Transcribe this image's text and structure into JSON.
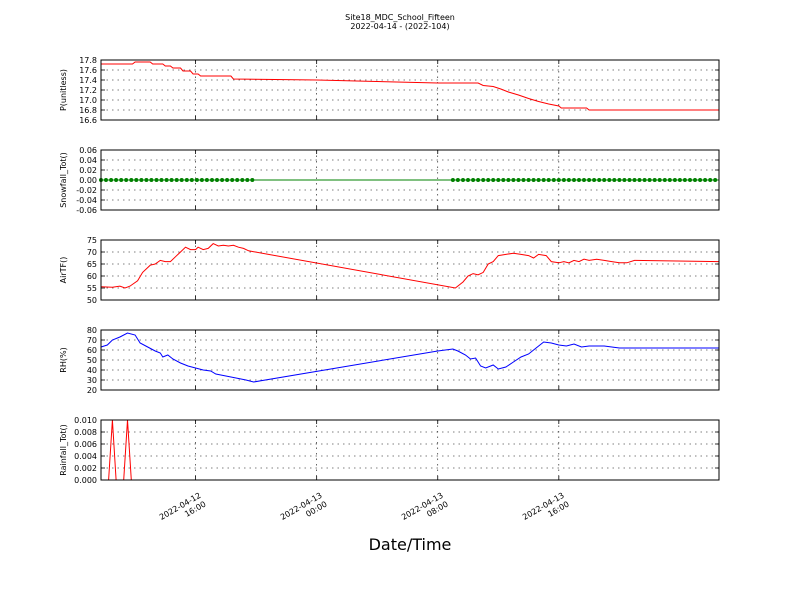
{
  "chart_data": {
    "title": "Site18_MDC_School_Fifteen",
    "subtitle": "2022-04-14 - (2022-104)",
    "xlabel": "Date/Time",
    "xlim": [
      "2022-04-12 09:45",
      "2022-04-14 02:35"
    ],
    "xticks": [
      {
        "label_date": "2022-04-12",
        "label_time": "16:00",
        "time": "2022-04-12 16:00"
      },
      {
        "label_date": "2022-04-13",
        "label_time": "00:00",
        "time": "2022-04-13 00:00"
      },
      {
        "label_date": "2022-04-13",
        "label_time": "08:00",
        "time": "2022-04-13 08:00"
      },
      {
        "label_date": "2022-04-13",
        "label_time": "16:00",
        "time": "2022-04-13 16:00"
      }
    ],
    "grid": true,
    "panels": [
      {
        "type": "line",
        "ylabel": "P(unitless)",
        "color": "#ff0000",
        "marker": "none",
        "ylim": [
          16.6,
          17.8
        ],
        "yticks": [
          "16.6",
          "16.8",
          "17.0",
          "17.2",
          "17.4",
          "17.6",
          "17.8"
        ],
        "points": [
          [
            "2022-04-12 09:45",
            17.72
          ],
          [
            "2022-04-12 11:50",
            17.72
          ],
          [
            "2022-04-12 12:00",
            17.76
          ],
          [
            "2022-04-12 13:00",
            17.76
          ],
          [
            "2022-04-12 13:10",
            17.72
          ],
          [
            "2022-04-12 13:50",
            17.72
          ],
          [
            "2022-04-12 14:00",
            17.68
          ],
          [
            "2022-04-12 14:20",
            17.68
          ],
          [
            "2022-04-12 14:30",
            17.64
          ],
          [
            "2022-04-12 15:00",
            17.64
          ],
          [
            "2022-04-12 15:10",
            17.58
          ],
          [
            "2022-04-12 15:40",
            17.58
          ],
          [
            "2022-04-12 15:50",
            17.52
          ],
          [
            "2022-04-12 16:10",
            17.52
          ],
          [
            "2022-04-12 16:20",
            17.48
          ],
          [
            "2022-04-12 18:20",
            17.48
          ],
          [
            "2022-04-12 18:30",
            17.42
          ],
          [
            "2022-04-13 00:00",
            17.4
          ],
          [
            "2022-04-13 08:00",
            17.34
          ],
          [
            "2022-04-13 10:40",
            17.34
          ],
          [
            "2022-04-13 11:00",
            17.29
          ],
          [
            "2022-04-13 11:40",
            17.27
          ],
          [
            "2022-04-13 12:10",
            17.22
          ],
          [
            "2022-04-13 12:40",
            17.16
          ],
          [
            "2022-04-13 13:20",
            17.1
          ],
          [
            "2022-04-13 14:00",
            17.03
          ],
          [
            "2022-04-13 14:40",
            16.97
          ],
          [
            "2022-04-13 15:20",
            16.92
          ],
          [
            "2022-04-13 16:00",
            16.88
          ],
          [
            "2022-04-13 16:10",
            16.84
          ],
          [
            "2022-04-13 17:50",
            16.84
          ],
          [
            "2022-04-13 18:00",
            16.8
          ],
          [
            "2022-04-14 02:35",
            16.8
          ]
        ]
      },
      {
        "type": "line",
        "ylabel": "Snowfall_Tot()",
        "color": "#008000",
        "marker": "dot",
        "ylim": [
          -0.06,
          0.06
        ],
        "yticks": [
          "-0.06",
          "-0.04",
          "-0.02",
          "0.00",
          "0.02",
          "0.04",
          "0.06"
        ],
        "marker_segments": [
          {
            "start": "2022-04-12 09:45",
            "end": "2022-04-12 19:50",
            "step_min": 20,
            "value": 0
          },
          {
            "start": "2022-04-13 09:00",
            "end": "2022-04-14 02:35",
            "step_min": 20,
            "value": 0
          }
        ],
        "points": [
          [
            "2022-04-12 09:45",
            0
          ],
          [
            "2022-04-14 02:35",
            0
          ]
        ]
      },
      {
        "type": "line",
        "ylabel": "AirTF()",
        "color": "#ff0000",
        "marker": "none",
        "ylim": [
          50,
          75
        ],
        "yticks": [
          "50",
          "55",
          "60",
          "65",
          "70",
          "75"
        ],
        "points": [
          [
            "2022-04-12 09:45",
            55.5
          ],
          [
            "2022-04-12 10:30",
            55.3
          ],
          [
            "2022-04-12 11:00",
            55.8
          ],
          [
            "2022-04-12 11:20",
            55.0
          ],
          [
            "2022-04-12 11:40",
            55.8
          ],
          [
            "2022-04-12 12:10",
            58.0
          ],
          [
            "2022-04-12 12:30",
            61.5
          ],
          [
            "2022-04-12 13:00",
            64.5
          ],
          [
            "2022-04-12 13:20",
            65.0
          ],
          [
            "2022-04-12 13:40",
            66.5
          ],
          [
            "2022-04-12 14:00",
            66.0
          ],
          [
            "2022-04-12 14:20",
            66.0
          ],
          [
            "2022-04-12 14:40",
            68.0
          ],
          [
            "2022-04-12 15:00",
            70.0
          ],
          [
            "2022-04-12 15:20",
            72.0
          ],
          [
            "2022-04-12 15:40",
            71.0
          ],
          [
            "2022-04-12 16:00",
            71.0
          ],
          [
            "2022-04-12 16:10",
            72.0
          ],
          [
            "2022-04-12 16:30",
            71.0
          ],
          [
            "2022-04-12 16:50",
            71.5
          ],
          [
            "2022-04-12 17:10",
            73.5
          ],
          [
            "2022-04-12 17:30",
            72.5
          ],
          [
            "2022-04-12 17:50",
            72.8
          ],
          [
            "2022-04-12 18:10",
            72.5
          ],
          [
            "2022-04-12 18:30",
            72.8
          ],
          [
            "2022-04-12 18:50",
            72.0
          ],
          [
            "2022-04-12 19:10",
            71.5
          ],
          [
            "2022-04-12 19:30",
            70.5
          ],
          [
            "2022-04-13 09:10",
            55.0
          ],
          [
            "2022-04-13 09:40",
            57.5
          ],
          [
            "2022-04-13 10:00",
            60.0
          ],
          [
            "2022-04-13 10:20",
            61.0
          ],
          [
            "2022-04-13 10:40",
            60.5
          ],
          [
            "2022-04-13 11:00",
            61.5
          ],
          [
            "2022-04-13 11:20",
            65.0
          ],
          [
            "2022-04-13 11:40",
            66.0
          ],
          [
            "2022-04-13 12:00",
            68.5
          ],
          [
            "2022-04-13 12:30",
            69.0
          ],
          [
            "2022-04-13 13:00",
            69.5
          ],
          [
            "2022-04-13 13:30",
            69.0
          ],
          [
            "2022-04-13 14:00",
            68.5
          ],
          [
            "2022-04-13 14:20",
            67.5
          ],
          [
            "2022-04-13 14:40",
            69.0
          ],
          [
            "2022-04-13 15:10",
            68.5
          ],
          [
            "2022-04-13 15:30",
            66.0
          ],
          [
            "2022-04-13 16:00",
            65.5
          ],
          [
            "2022-04-13 16:20",
            66.0
          ],
          [
            "2022-04-13 16:40",
            65.5
          ],
          [
            "2022-04-13 17:00",
            66.5
          ],
          [
            "2022-04-13 17:20",
            66.0
          ],
          [
            "2022-04-13 17:40",
            67.0
          ],
          [
            "2022-04-13 18:00",
            66.5
          ],
          [
            "2022-04-13 18:30",
            67.0
          ],
          [
            "2022-04-13 19:00",
            66.5
          ],
          [
            "2022-04-13 19:30",
            66.0
          ],
          [
            "2022-04-13 20:00",
            65.5
          ],
          [
            "2022-04-13 20:30",
            65.5
          ],
          [
            "2022-04-13 21:00",
            66.5
          ],
          [
            "2022-04-14 02:35",
            66.0
          ]
        ]
      },
      {
        "type": "line",
        "ylabel": "RH(%)",
        "color": "#0000ff",
        "marker": "none",
        "ylim": [
          20,
          80
        ],
        "yticks": [
          "20",
          "30",
          "40",
          "50",
          "60",
          "70",
          "80"
        ],
        "points": [
          [
            "2022-04-12 09:45",
            63
          ],
          [
            "2022-04-12 10:10",
            65
          ],
          [
            "2022-04-12 10:30",
            70
          ],
          [
            "2022-04-12 11:00",
            73
          ],
          [
            "2022-04-12 11:30",
            77
          ],
          [
            "2022-04-12 12:00",
            75
          ],
          [
            "2022-04-12 12:20",
            67
          ],
          [
            "2022-04-12 12:50",
            63
          ],
          [
            "2022-04-12 13:20",
            59
          ],
          [
            "2022-04-12 13:40",
            57
          ],
          [
            "2022-04-12 13:50",
            53
          ],
          [
            "2022-04-12 14:10",
            55
          ],
          [
            "2022-04-12 14:30",
            51
          ],
          [
            "2022-04-12 15:00",
            47
          ],
          [
            "2022-04-12 15:30",
            44
          ],
          [
            "2022-04-12 16:00",
            42
          ],
          [
            "2022-04-12 16:30",
            40
          ],
          [
            "2022-04-12 17:00",
            39
          ],
          [
            "2022-04-12 17:20",
            36
          ],
          [
            "2022-04-12 18:00",
            34
          ],
          [
            "2022-04-12 18:40",
            32
          ],
          [
            "2022-04-12 19:20",
            30
          ],
          [
            "2022-04-12 19:50",
            28
          ],
          [
            "2022-04-13 08:00",
            59
          ],
          [
            "2022-04-13 09:00",
            61
          ],
          [
            "2022-04-13 09:20",
            59
          ],
          [
            "2022-04-13 09:50",
            55
          ],
          [
            "2022-04-13 10:10",
            51
          ],
          [
            "2022-04-13 10:30",
            52
          ],
          [
            "2022-04-13 10:50",
            44
          ],
          [
            "2022-04-13 11:10",
            42
          ],
          [
            "2022-04-13 11:40",
            45
          ],
          [
            "2022-04-13 12:00",
            41
          ],
          [
            "2022-04-13 12:30",
            43
          ],
          [
            "2022-04-13 13:00",
            48
          ],
          [
            "2022-04-13 13:30",
            53
          ],
          [
            "2022-04-13 14:00",
            56
          ],
          [
            "2022-04-13 14:30",
            62
          ],
          [
            "2022-04-13 15:00",
            68
          ],
          [
            "2022-04-13 15:30",
            67
          ],
          [
            "2022-04-13 16:00",
            65
          ],
          [
            "2022-04-13 16:30",
            64
          ],
          [
            "2022-04-13 17:00",
            66
          ],
          [
            "2022-04-13 17:30",
            63
          ],
          [
            "2022-04-13 18:00",
            64
          ],
          [
            "2022-04-13 19:00",
            64
          ],
          [
            "2022-04-13 19:30",
            63
          ],
          [
            "2022-04-13 20:00",
            62
          ],
          [
            "2022-04-14 02:35",
            62
          ]
        ]
      },
      {
        "type": "line",
        "ylabel": "Rainfall_Tot()",
        "color": "#ff0000",
        "marker": "none",
        "ylim": [
          0.0,
          0.01
        ],
        "yticks": [
          "0.000",
          "0.002",
          "0.004",
          "0.006",
          "0.008",
          "0.010"
        ],
        "points": [
          [
            "2022-04-12 09:45",
            0.0
          ],
          [
            "2022-04-12 10:15",
            0.0
          ],
          [
            "2022-04-12 10:30",
            0.01
          ],
          [
            "2022-04-12 10:45",
            0.0
          ],
          [
            "2022-04-12 11:15",
            0.0
          ],
          [
            "2022-04-12 11:30",
            0.01
          ],
          [
            "2022-04-12 11:45",
            0.0
          ],
          [
            "2022-04-14 02:35",
            0.0
          ]
        ]
      }
    ]
  }
}
